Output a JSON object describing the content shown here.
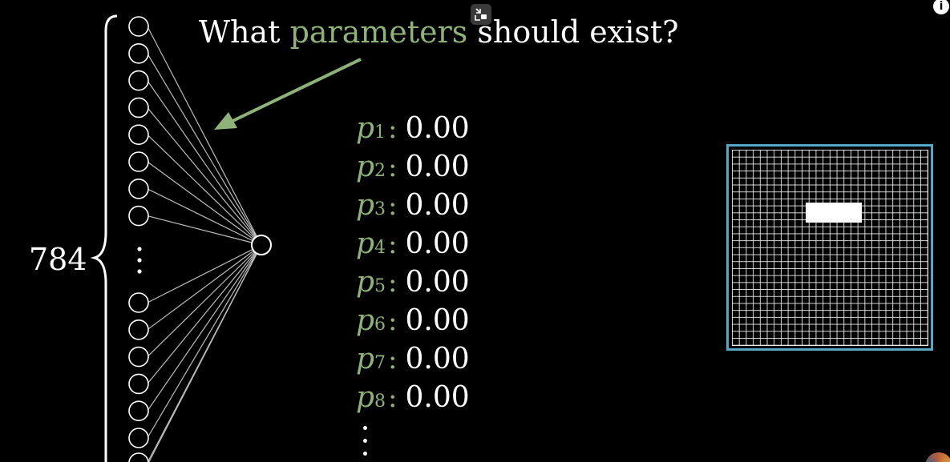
{
  "title": {
    "prefix": "What",
    "highlight": "parameters",
    "suffix": "should exist?"
  },
  "input_count_label": "784",
  "parameters": [
    {
      "name": "p",
      "sub": "1",
      "value": "0.00"
    },
    {
      "name": "p",
      "sub": "2",
      "value": "0.00"
    },
    {
      "name": "p",
      "sub": "3",
      "value": "0.00"
    },
    {
      "name": "p",
      "sub": "4",
      "value": "0.00"
    },
    {
      "name": "p",
      "sub": "5",
      "value": "0.00"
    },
    {
      "name": "p",
      "sub": "6",
      "value": "0.00"
    },
    {
      "name": "p",
      "sub": "7",
      "value": "0.00"
    },
    {
      "name": "p",
      "sub": "8",
      "value": "0.00"
    }
  ],
  "icons": {
    "top_control": "exit-fullscreen-icon",
    "info": "info-icon",
    "info_glyph": "i",
    "avatar": "channel-avatar"
  },
  "colors": {
    "background": "#000000",
    "highlight": "#8fb27a",
    "arrow": "#8fb27a",
    "grid_border": "#58a6c4",
    "text": "#ffffff"
  }
}
